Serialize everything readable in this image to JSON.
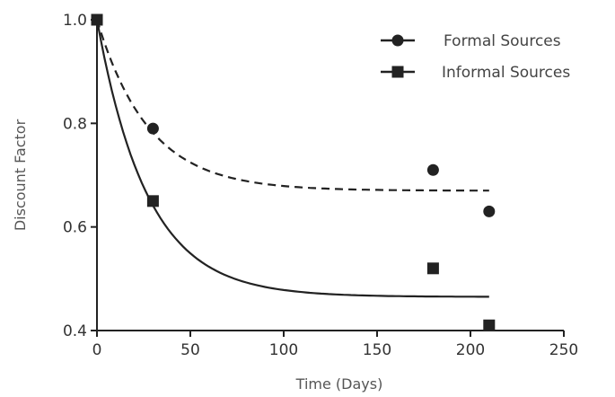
{
  "chart_data": {
    "type": "scatter",
    "xlabel": "Time (Days)",
    "ylabel": "Discount Factor",
    "xlim": [
      0,
      250
    ],
    "ylim": [
      0.4,
      1.0
    ],
    "x_ticks": [
      "0",
      "50",
      "100",
      "150",
      "200",
      "250"
    ],
    "y_ticks": [
      "0.4",
      "0.6",
      "0.8",
      "1.0"
    ],
    "grid": false,
    "legend_position": "top-right",
    "series": [
      {
        "name": "Formal Sources",
        "marker": "circle",
        "line_style": "dashed",
        "color": "#222222",
        "points": [
          {
            "x": 0,
            "y": 1.0
          },
          {
            "x": 30,
            "y": 0.79
          },
          {
            "x": 180,
            "y": 0.71
          },
          {
            "x": 210,
            "y": 0.63
          }
        ],
        "fit": {
          "model": "exponential_decay",
          "plateau": 0.67,
          "rate": 0.036,
          "x_range": [
            0,
            210
          ]
        }
      },
      {
        "name": "Informal Sources",
        "marker": "square",
        "line_style": "solid",
        "color": "#222222",
        "points": [
          {
            "x": 0,
            "y": 1.0
          },
          {
            "x": 30,
            "y": 0.65
          },
          {
            "x": 180,
            "y": 0.52
          },
          {
            "x": 210,
            "y": 0.41
          }
        ],
        "fit": {
          "model": "exponential_decay",
          "plateau": 0.465,
          "rate": 0.037,
          "x_range": [
            0,
            210
          ]
        }
      }
    ]
  }
}
